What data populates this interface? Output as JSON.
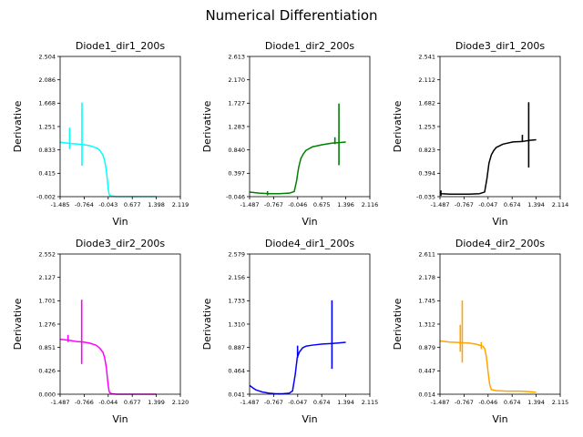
{
  "figure": {
    "title": "Numerical Differentiation"
  },
  "chart_data": [
    {
      "type": "line",
      "title": "Diode1_dir1_200s",
      "xlabel": "Vin",
      "ylabel": "Derivative",
      "color": "#00ffff",
      "xlim": [
        -1.485,
        2.119
      ],
      "ylim": [
        -0.002,
        2.504
      ],
      "xticks": [
        "-1.485",
        "-0.764",
        "-0.043",
        "0.677",
        "1.398",
        "2.119"
      ],
      "yticks": [
        "-0.002",
        "0.415",
        "0.833",
        "1.251",
        "1.668",
        "2.086",
        "2.504"
      ],
      "grid": false,
      "series": [
        {
          "x": [
            -1.485,
            -1.2,
            -1.0,
            -0.8,
            -0.6,
            -0.4,
            -0.3,
            -0.2,
            -0.15,
            -0.1,
            -0.07,
            -0.04,
            -0.02,
            0.0,
            0.05,
            0.2,
            0.5,
            0.9,
            1.398
          ],
          "y": [
            0.97,
            0.95,
            0.94,
            0.93,
            0.91,
            0.87,
            0.83,
            0.74,
            0.64,
            0.47,
            0.3,
            0.13,
            0.05,
            0.02,
            0.01,
            0.0,
            0.0,
            0.0,
            0.0
          ]
        }
      ],
      "spikes": [
        {
          "x": -1.2,
          "y": [
            0.85,
            1.23
          ]
        },
        {
          "x": -0.83,
          "y": [
            0.55,
            1.68
          ]
        }
      ]
    },
    {
      "type": "line",
      "title": "Diode1_dir2_200s",
      "xlabel": "Vin",
      "ylabel": "Derivative",
      "color": "#008000",
      "xlim": [
        -1.487,
        2.116
      ],
      "ylim": [
        -0.046,
        2.613
      ],
      "xticks": [
        "-1.487",
        "-0.767",
        "-0.046",
        "0.675",
        "1.396",
        "2.116"
      ],
      "yticks": [
        "-0.046",
        "0.397",
        "0.840",
        "1.283",
        "1.727",
        "2.170",
        "2.613"
      ],
      "grid": false,
      "series": [
        {
          "x": [
            -1.487,
            -1.2,
            -0.9,
            -0.6,
            -0.3,
            -0.15,
            -0.08,
            -0.02,
            0.05,
            0.12,
            0.2,
            0.4,
            0.7,
            1.0,
            1.2,
            1.396
          ],
          "y": [
            0.04,
            0.02,
            0.01,
            0.01,
            0.02,
            0.05,
            0.25,
            0.5,
            0.68,
            0.76,
            0.83,
            0.9,
            0.94,
            0.97,
            0.98,
            0.99
          ]
        }
      ],
      "spikes": [
        {
          "x": -0.95,
          "y": [
            -0.02,
            0.06
          ]
        },
        {
          "x": 1.07,
          "y": [
            0.95,
            1.08
          ]
        },
        {
          "x": 1.19,
          "y": [
            0.55,
            1.72
          ]
        }
      ]
    },
    {
      "type": "line",
      "title": "Diode3_dir1_200s",
      "xlabel": "Vin",
      "ylabel": "Derivative",
      "color": "#000000",
      "xlim": [
        -1.487,
        2.114
      ],
      "ylim": [
        -0.035,
        2.541
      ],
      "xticks": [
        "-1.487",
        "-0.767",
        "-0.047",
        "0.674",
        "1.394",
        "2.114"
      ],
      "yticks": [
        "-0.035",
        "0.394",
        "0.823",
        "1.253",
        "1.682",
        "2.112",
        "2.541"
      ],
      "grid": false,
      "series": [
        {
          "x": [
            -1.487,
            -1.45,
            -1.2,
            -0.9,
            -0.6,
            -0.3,
            -0.15,
            -0.08,
            -0.02,
            0.05,
            0.12,
            0.2,
            0.4,
            0.7,
            1.0,
            1.2,
            1.394
          ],
          "y": [
            0.05,
            0.02,
            0.01,
            0.01,
            0.01,
            0.02,
            0.05,
            0.3,
            0.58,
            0.73,
            0.81,
            0.87,
            0.93,
            0.97,
            0.98,
            1.0,
            1.01
          ]
        }
      ],
      "spikes": [
        {
          "x": -1.46,
          "y": [
            -0.02,
            0.08
          ]
        },
        {
          "x": 0.98,
          "y": [
            0.97,
            1.1
          ]
        },
        {
          "x": 1.17,
          "y": [
            0.5,
            1.7
          ]
        }
      ]
    },
    {
      "type": "line",
      "title": "Diode3_dir2_200s",
      "xlabel": "Vin",
      "ylabel": "Derivative",
      "color": "#ff00ff",
      "xlim": [
        -1.487,
        2.12
      ],
      "ylim": [
        0.0,
        2.552
      ],
      "xticks": [
        "-1.487",
        "-0.766",
        "-0.044",
        "0.677",
        "1.399",
        "2.120"
      ],
      "yticks": [
        "0.000",
        "0.426",
        "0.851",
        "1.276",
        "1.701",
        "2.127",
        "2.552"
      ],
      "grid": false,
      "series": [
        {
          "x": [
            -1.487,
            -1.2,
            -1.0,
            -0.8,
            -0.6,
            -0.4,
            -0.3,
            -0.2,
            -0.15,
            -0.1,
            -0.07,
            -0.04,
            -0.02,
            0.0,
            0.05,
            0.2,
            0.5,
            0.9,
            1.399
          ],
          "y": [
            1.0,
            0.98,
            0.96,
            0.95,
            0.93,
            0.89,
            0.84,
            0.76,
            0.66,
            0.48,
            0.3,
            0.14,
            0.06,
            0.03,
            0.01,
            0.0,
            0.0,
            0.0,
            0.0
          ]
        }
      ],
      "spikes": [
        {
          "x": -1.25,
          "y": [
            0.95,
            1.08
          ]
        },
        {
          "x": -0.84,
          "y": [
            0.55,
            1.72
          ]
        }
      ]
    },
    {
      "type": "line",
      "title": "Diode4_dir1_200s",
      "xlabel": "Vin",
      "ylabel": "Derivative",
      "color": "#0000ff",
      "xlim": [
        -1.487,
        2.115
      ],
      "ylim": [
        0.041,
        2.579
      ],
      "xticks": [
        "-1.487",
        "-0.767",
        "-0.047",
        "0.674",
        "1.394",
        "2.115"
      ],
      "yticks": [
        "0.041",
        "0.464",
        "0.887",
        "1.310",
        "1.733",
        "2.156",
        "2.579"
      ],
      "grid": false,
      "series": [
        {
          "x": [
            -1.487,
            -1.4,
            -1.3,
            -1.2,
            -1.1,
            -1.0,
            -0.9,
            -0.7,
            -0.5,
            -0.3,
            -0.2,
            -0.12,
            -0.06,
            0.0,
            0.05,
            0.1,
            0.2,
            0.4,
            0.7,
            1.0,
            1.2,
            1.394
          ],
          "y": [
            0.2,
            0.16,
            0.12,
            0.1,
            0.08,
            0.07,
            0.06,
            0.05,
            0.05,
            0.06,
            0.1,
            0.4,
            0.7,
            0.8,
            0.84,
            0.88,
            0.91,
            0.93,
            0.95,
            0.96,
            0.97,
            0.98
          ]
        }
      ],
      "spikes": [
        {
          "x": -0.05,
          "y": [
            0.7,
            0.92
          ]
        },
        {
          "x": 0.98,
          "y": [
            0.5,
            1.74
          ]
        }
      ]
    },
    {
      "type": "line",
      "title": "Diode4_dir2_200s",
      "xlabel": "Vin",
      "ylabel": "Derivative",
      "color": "#ffa500",
      "xlim": [
        -1.487,
        2.115
      ],
      "ylim": [
        0.014,
        2.611
      ],
      "xticks": [
        "-1.487",
        "-0.767",
        "-0.046",
        "0.674",
        "1.394",
        "2.115"
      ],
      "yticks": [
        "0.014",
        "0.447",
        "0.879",
        "1.312",
        "1.745",
        "2.178",
        "2.611"
      ],
      "grid": false,
      "series": [
        {
          "x": [
            -1.487,
            -1.2,
            -0.9,
            -0.6,
            -0.4,
            -0.3,
            -0.2,
            -0.15,
            -0.1,
            -0.05,
            0.0,
            0.05,
            0.2,
            0.5,
            0.9,
            1.2,
            1.394
          ],
          "y": [
            1.0,
            0.98,
            0.97,
            0.96,
            0.94,
            0.92,
            0.9,
            0.86,
            0.72,
            0.45,
            0.2,
            0.1,
            0.08,
            0.07,
            0.07,
            0.06,
            0.05
          ]
        }
      ],
      "spikes": [
        {
          "x": -0.88,
          "y": [
            0.8,
            1.3
          ]
        },
        {
          "x": -0.82,
          "y": [
            0.6,
            1.75
          ]
        },
        {
          "x": -0.25,
          "y": [
            0.85,
            0.98
          ]
        }
      ]
    }
  ]
}
